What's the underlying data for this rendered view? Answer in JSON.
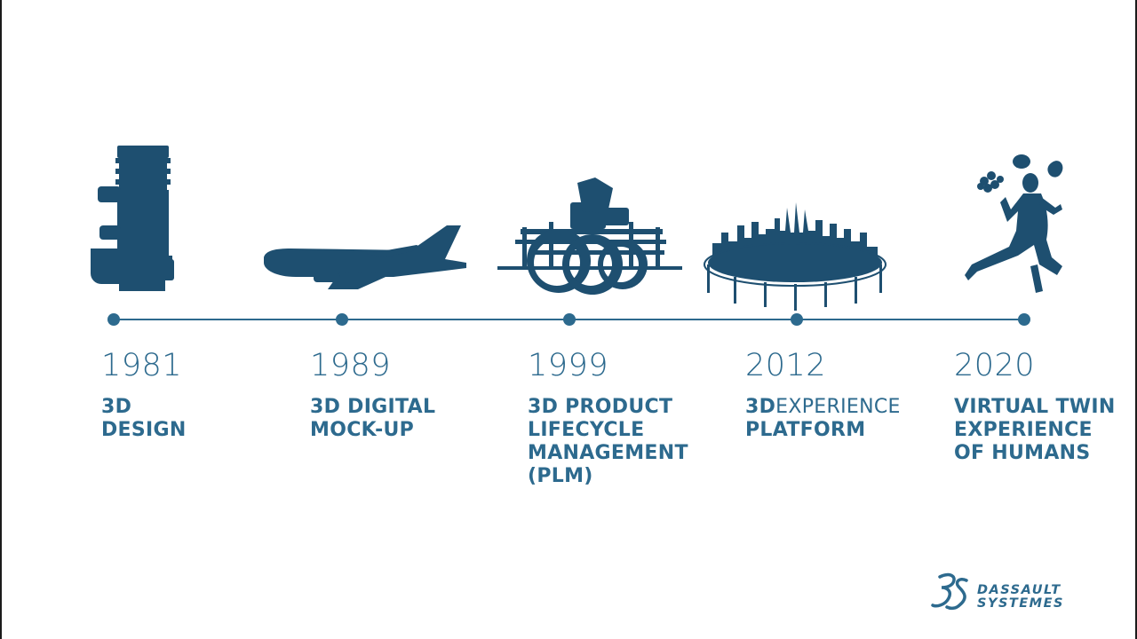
{
  "milestones": [
    {
      "year": "1981",
      "lines": [
        "3D",
        "DESIGN"
      ],
      "icon": "engine-part-icon"
    },
    {
      "year": "1989",
      "lines": [
        "3D DIGITAL",
        "MOCK-UP"
      ],
      "icon": "airplane-icon"
    },
    {
      "year": "1999",
      "lines": [
        "3D PRODUCT",
        "LIFECYCLE",
        "MANAGEMENT",
        "(PLM)"
      ],
      "icon": "machinery-icon"
    },
    {
      "year": "2012",
      "lines_mixed": {
        "bold": "3D",
        "light": "EXPERIENCE"
      },
      "lines": [
        "PLATFORM"
      ],
      "icon": "city-platform-icon"
    },
    {
      "year": "2020",
      "lines": [
        "VIRTUAL TWIN",
        "EXPERIENCE",
        "OF HUMANS"
      ],
      "icon": "running-human-icon"
    }
  ],
  "logo": {
    "line1": "DASSAULT",
    "line2": "SYSTEMES"
  },
  "colors": {
    "accent": "#2d6a8e",
    "silhouette": "#1e4f70",
    "background": "#ffffff"
  }
}
